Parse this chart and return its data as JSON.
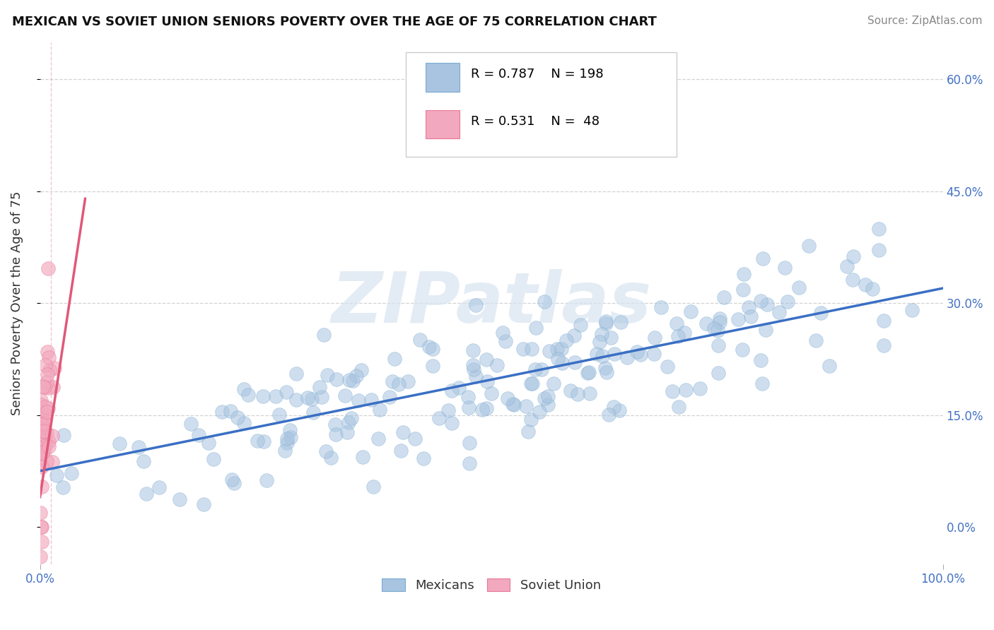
{
  "title": "MEXICAN VS SOVIET UNION SENIORS POVERTY OVER THE AGE OF 75 CORRELATION CHART",
  "source": "Source: ZipAtlas.com",
  "ylabel": "Seniors Poverty Over the Age of 75",
  "xlim": [
    0,
    1.0
  ],
  "ylim": [
    -0.05,
    0.65
  ],
  "xticks": [
    0.0,
    1.0
  ],
  "xticklabels": [
    "0.0%",
    "100.0%"
  ],
  "yticks": [
    0.0,
    0.15,
    0.3,
    0.45,
    0.6
  ],
  "yticklabels": [
    "0.0%",
    "15.0%",
    "30.0%",
    "45.0%",
    "60.0%"
  ],
  "mexican_color": "#a8c4e0",
  "soviet_color": "#f2a8be",
  "mexican_edge_color": "#7aaad0",
  "soviet_edge_color": "#e87898",
  "mexican_line_color": "#3a6fc4",
  "soviet_line_color": "#e05878",
  "soviet_dash_color": "#e8a0b8",
  "watermark_color": "#d8e4f0",
  "tick_color": "#4472c4",
  "grid_color": "#c8c8c8",
  "legend_R1": "0.787",
  "legend_N1": "198",
  "legend_R2": "0.531",
  "legend_N2": " 48",
  "mexican_slope": 0.245,
  "mexican_intercept": 0.075,
  "soviet_slope": 8.0,
  "soviet_intercept": 0.04,
  "background_color": "#ffffff",
  "title_fontsize": 13,
  "source_fontsize": 11,
  "tick_fontsize": 12,
  "ylabel_fontsize": 13,
  "legend_fontsize": 13,
  "watermark": "ZIPatlas"
}
